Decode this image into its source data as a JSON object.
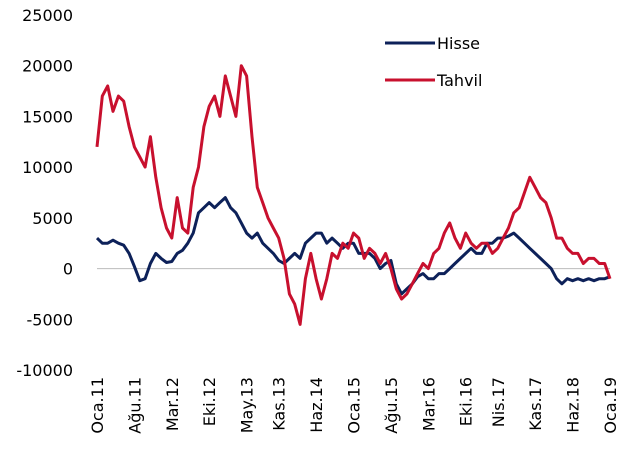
{
  "chart_data": {
    "type": "line",
    "categories": [
      "Oca.11",
      null,
      null,
      null,
      null,
      null,
      null,
      "Ağu.11",
      null,
      null,
      null,
      null,
      null,
      null,
      "Mar.12",
      null,
      null,
      null,
      null,
      null,
      null,
      "Eki.12",
      null,
      null,
      null,
      null,
      null,
      null,
      "May.13",
      null,
      null,
      null,
      null,
      null,
      "Kas.13",
      null,
      null,
      null,
      null,
      null,
      null,
      "Haz.14",
      null,
      null,
      null,
      null,
      null,
      null,
      "Oca.15",
      null,
      null,
      null,
      null,
      null,
      null,
      "Ağu.15",
      null,
      null,
      null,
      null,
      null,
      null,
      "Mar.16",
      null,
      null,
      null,
      null,
      null,
      null,
      "Eki.16",
      null,
      null,
      null,
      null,
      null,
      "Nis.17",
      null,
      null,
      null,
      null,
      null,
      null,
      "Kas.17",
      null,
      null,
      null,
      null,
      null,
      null,
      "Haz.18",
      null,
      null,
      null,
      null,
      null,
      null,
      "Oca.19"
    ],
    "series": [
      {
        "name": "Hisse",
        "color": "#0d2159",
        "values": [
          3000,
          2500,
          2500,
          2800,
          2500,
          2300,
          1500,
          200,
          -1200,
          -1000,
          500,
          1500,
          1000,
          600,
          700,
          1500,
          1800,
          2500,
          3500,
          5500,
          6000,
          6500,
          6000,
          6500,
          7000,
          6000,
          5500,
          4500,
          3500,
          3000,
          3500,
          2500,
          2000,
          1500,
          800,
          500,
          1000,
          1500,
          1000,
          2500,
          3000,
          3500,
          3500,
          2500,
          3000,
          2500,
          2000,
          2500,
          2500,
          1500,
          1500,
          1500,
          1000,
          0,
          500,
          800,
          -1500,
          -2500,
          -2000,
          -1500,
          -800,
          -500,
          -1000,
          -1000,
          -500,
          -500,
          0,
          500,
          1000,
          1500,
          2000,
          1500,
          1500,
          2500,
          2500,
          3000,
          3000,
          3200,
          3500,
          3000,
          2500,
          2000,
          1500,
          1000,
          500,
          0,
          -1000,
          -1500,
          -1000,
          -1200,
          -1000,
          -1200,
          -1000,
          -1200,
          -1000,
          -1000,
          -800
        ]
      },
      {
        "name": "Tahvil",
        "color": "#c8102e",
        "values": [
          12000,
          17000,
          18000,
          15500,
          17000,
          16500,
          14000,
          12000,
          11000,
          10000,
          13000,
          9000,
          6000,
          4000,
          3000,
          7000,
          4000,
          3500,
          8000,
          10000,
          14000,
          16000,
          17000,
          15000,
          19000,
          17000,
          15000,
          20000,
          19000,
          13000,
          8000,
          6500,
          5000,
          4000,
          3000,
          1000,
          -2500,
          -3500,
          -5500,
          -1000,
          1500,
          -1000,
          -3000,
          -1000,
          1500,
          1000,
          2500,
          2000,
          3500,
          3000,
          1000,
          2000,
          1500,
          500,
          1500,
          0,
          -2000,
          -3000,
          -2500,
          -1500,
          -500,
          500,
          0,
          1500,
          2000,
          3500,
          4500,
          3000,
          2000,
          3500,
          2500,
          2000,
          2500,
          2500,
          1500,
          2000,
          3000,
          4000,
          5500,
          6000,
          7500,
          9000,
          8000,
          7000,
          6500,
          5000,
          3000,
          3000,
          2000,
          1500,
          1500,
          500,
          1000,
          1000,
          500,
          500,
          -1000
        ]
      }
    ],
    "ylim": [
      -10000,
      25000
    ],
    "yticks": [
      -10000,
      -5000,
      0,
      5000,
      10000,
      15000,
      20000,
      25000
    ],
    "legend": "upper right"
  }
}
